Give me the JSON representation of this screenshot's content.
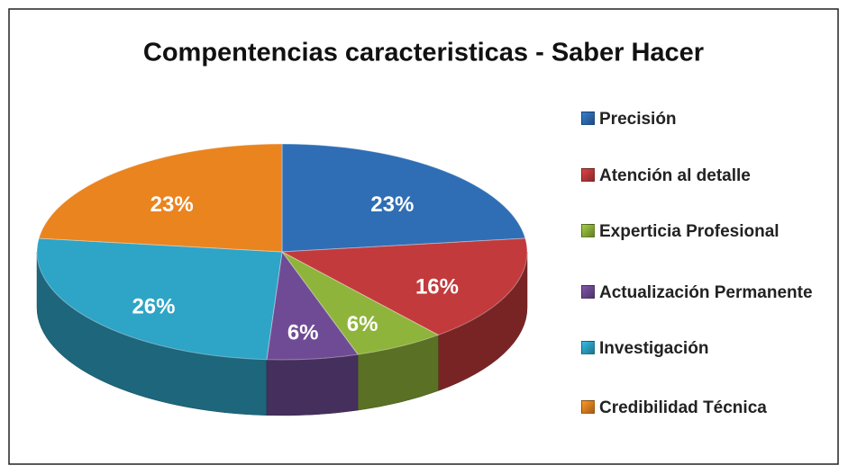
{
  "chart_data": {
    "type": "pie",
    "title": "Compentencias caracteristicas - Saber Hacer",
    "categories": [
      "Precisión",
      "Atención al detalle",
      "Experticia Profesional",
      "Actualización Permanente",
      "Investigación",
      "Credibilidad Técnica"
    ],
    "values": [
      23,
      16,
      6,
      6,
      26,
      23
    ],
    "value_labels": [
      "23%",
      "16%",
      "6%",
      "6%",
      "26%",
      "23%"
    ],
    "colors": [
      "#2f6eb5",
      "#c23a3c",
      "#8fb43c",
      "#704b95",
      "#2ea4c6",
      "#ea841f"
    ],
    "legend": "right"
  }
}
